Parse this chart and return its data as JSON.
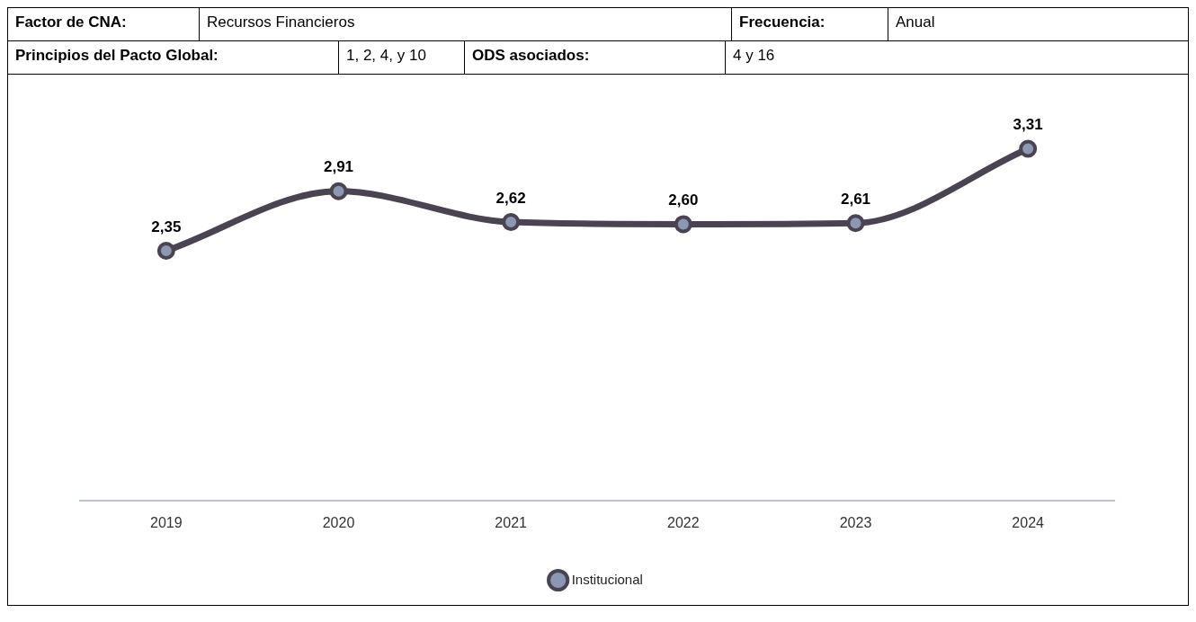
{
  "chart_data": {
    "type": "line",
    "annotations": [
      "Factor de CNA:",
      "Recursos Financieros",
      "Frecuencia:",
      "Anual",
      "Principios del Pacto Global:",
      "1, 2, 4, y 10",
      "ODS asociados:",
      "4 y 16"
    ],
    "categories": [
      "2019",
      "2020",
      "2021",
      "2022",
      "2023",
      "2024"
    ],
    "series": [
      {
        "name": "Institucional",
        "color": "#4a4452",
        "values": [
          2.35,
          2.91,
          2.62,
          2.6,
          2.61,
          3.31
        ],
        "value_labels": [
          "2,35",
          "2,91",
          "2,62",
          "2,60",
          "2,61",
          "3,31"
        ]
      }
    ],
    "legend": "bottom",
    "grid": false,
    "marker": "circle",
    "line_style": "solid"
  }
}
